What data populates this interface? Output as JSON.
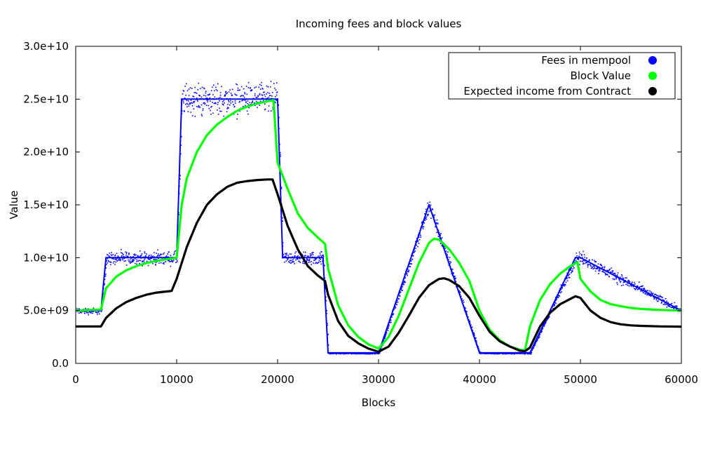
{
  "chart_data": {
    "type": "scatter",
    "title": "Incoming fees and block values",
    "xlabel": "Blocks",
    "ylabel": "Value",
    "xlim": [
      0,
      60000
    ],
    "ylim": [
      0,
      30000000000
    ],
    "x_ticks": [
      0,
      10000,
      20000,
      30000,
      40000,
      50000,
      60000
    ],
    "x_tick_labels": [
      "0",
      "10000",
      "20000",
      "30000",
      "40000",
      "50000",
      "60000"
    ],
    "y_ticks": [
      0,
      5000000000,
      10000000000,
      15000000000,
      20000000000,
      25000000000,
      30000000000
    ],
    "y_tick_labels": [
      "0.0",
      "5.0e+09",
      "1.0e+10",
      "1.5e+10",
      "2.0e+10",
      "2.5e+10",
      "3.0e+10"
    ],
    "grid": false,
    "legend_position": "top-right",
    "series": [
      {
        "name": "Fees in mempool",
        "color": "#0000ff",
        "noisy": true,
        "x": [
          0,
          2499,
          2500,
          3000,
          9500,
          9999,
          10000,
          10500,
          19500,
          19999,
          20000,
          20500,
          24500,
          25000,
          29500,
          30000,
          35000,
          40000,
          44500,
          45000,
          49500,
          50000,
          60000
        ],
        "y": [
          5000000000,
          5000000000,
          5000000000,
          10000000000,
          10000000000,
          10000000000,
          10000000000,
          25000000000,
          25000000000,
          25000000000,
          25000000000,
          10000000000,
          10000000000,
          1000000000,
          1000000000,
          1000000000,
          15000000000,
          1000000000,
          1000000000,
          1000000000,
          10000000000,
          10000000000,
          5000000000
        ]
      },
      {
        "name": "Block Value",
        "color": "#00ff00",
        "noisy": false,
        "x": [
          0,
          2500,
          3000,
          4000,
          5000,
          6000,
          7000,
          8000,
          9000,
          10000,
          10500,
          11000,
          12000,
          13000,
          14000,
          15000,
          16000,
          17000,
          18000,
          19000,
          19600,
          20000,
          21000,
          22000,
          23000,
          24000,
          24700,
          25000,
          26000,
          27000,
          28000,
          29000,
          30000,
          31000,
          32000,
          33000,
          34000,
          35000,
          35500,
          36000,
          37000,
          38000,
          39000,
          40000,
          41000,
          42000,
          43000,
          44000,
          44500,
          45000,
          46000,
          47000,
          48000,
          49000,
          49700,
          50000,
          51000,
          52000,
          53000,
          54000,
          55000,
          56000,
          58000,
          60000
        ],
        "y": [
          5000000000,
          5100000000,
          7100000000,
          8200000000,
          8800000000,
          9200000000,
          9500000000,
          9700000000,
          9850000000,
          10000000000,
          15000000000,
          17500000000,
          20000000000,
          21600000000,
          22600000000,
          23300000000,
          23900000000,
          24300000000,
          24600000000,
          24800000000,
          24900000000,
          19000000000,
          16500000000,
          14200000000,
          12800000000,
          11900000000,
          11300000000,
          9000000000,
          5500000000,
          3600000000,
          2500000000,
          1800000000,
          1400000000,
          2500000000,
          4500000000,
          7000000000,
          9500000000,
          11400000000,
          11800000000,
          11700000000,
          10800000000,
          9500000000,
          7800000000,
          5000000000,
          3200000000,
          2200000000,
          1600000000,
          1300000000,
          1200000000,
          3500000000,
          6000000000,
          7500000000,
          8500000000,
          9200000000,
          9600000000,
          8000000000,
          6800000000,
          6000000000,
          5600000000,
          5400000000,
          5250000000,
          5150000000,
          5050000000,
          5000000000
        ]
      },
      {
        "name": "Expected income from Contract",
        "color": "#000000",
        "noisy": false,
        "x": [
          0,
          2000,
          2500,
          3000,
          4000,
          5000,
          6000,
          7000,
          8000,
          9000,
          9500,
          10000,
          11000,
          12000,
          13000,
          14000,
          15000,
          16000,
          17000,
          18000,
          19000,
          19500,
          20000,
          21000,
          22000,
          23000,
          24000,
          24700,
          25000,
          26000,
          27000,
          28000,
          29000,
          30000,
          31000,
          32000,
          33000,
          34000,
          35000,
          36000,
          36500,
          37000,
          38000,
          39000,
          40000,
          41000,
          42000,
          43000,
          44000,
          44500,
          45000,
          46000,
          47000,
          48000,
          49000,
          49500,
          50000,
          51000,
          52000,
          53000,
          54000,
          55000,
          56000,
          58000,
          60000
        ],
        "y": [
          3500000000,
          3500000000,
          3500000000,
          4300000000,
          5200000000,
          5800000000,
          6200000000,
          6500000000,
          6700000000,
          6800000000,
          6850000000,
          8000000000,
          11000000000,
          13300000000,
          15000000000,
          16000000000,
          16700000000,
          17100000000,
          17250000000,
          17350000000,
          17400000000,
          17400000000,
          16000000000,
          13000000000,
          10800000000,
          9200000000,
          8300000000,
          7800000000,
          6500000000,
          4000000000,
          2600000000,
          1900000000,
          1400000000,
          1100000000,
          1600000000,
          2900000000,
          4500000000,
          6200000000,
          7400000000,
          8000000000,
          8050000000,
          7900000000,
          7300000000,
          6200000000,
          4500000000,
          3000000000,
          2100000000,
          1600000000,
          1200000000,
          1150000000,
          1500000000,
          3500000000,
          4800000000,
          5600000000,
          6100000000,
          6350000000,
          6200000000,
          5000000000,
          4300000000,
          3900000000,
          3700000000,
          3600000000,
          3550000000,
          3500000000,
          3480000000
        ]
      }
    ]
  }
}
